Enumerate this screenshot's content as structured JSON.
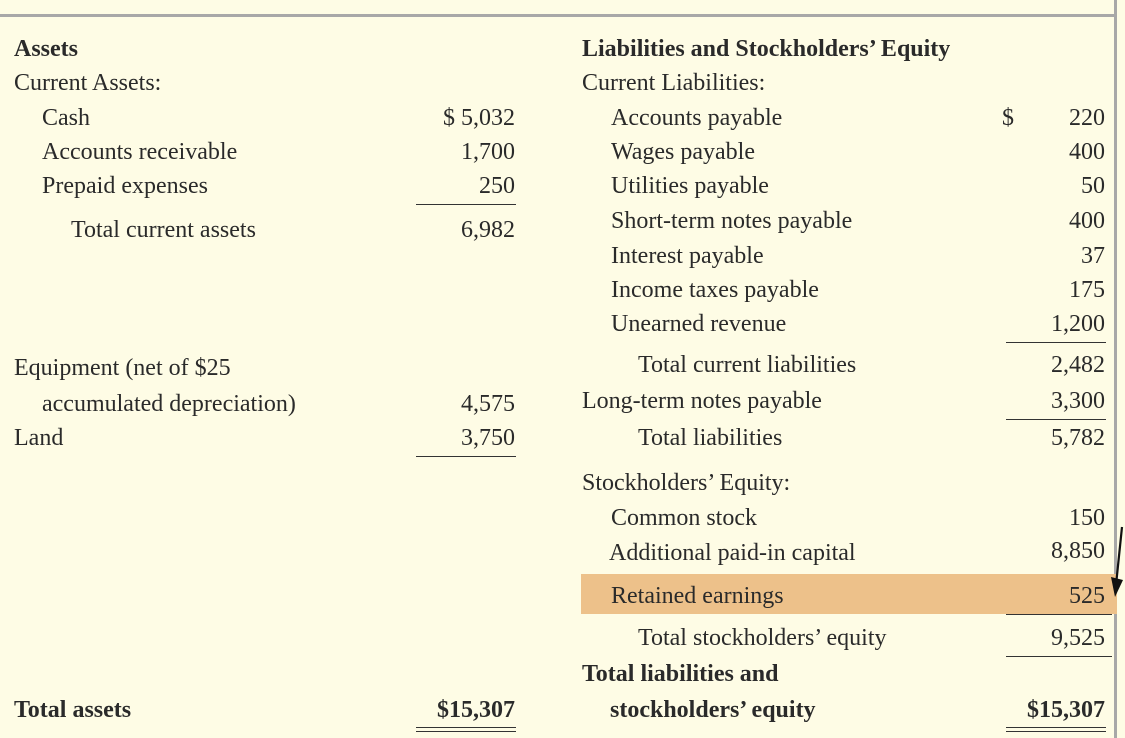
{
  "assets": {
    "heading": "Assets",
    "current_heading": "Current Assets:",
    "cash_label": "Cash",
    "cash_value": "$ 5,032",
    "ar_label": "Accounts receivable",
    "ar_value": "1,700",
    "prepaid_label": "Prepaid expenses",
    "prepaid_value": "250",
    "total_current_label": "Total current assets",
    "total_current_value": "6,982",
    "equipment_label_1": "Equipment (net of $25",
    "equipment_label_2": "accumulated depreciation)",
    "equipment_value": "4,575",
    "land_label": "Land",
    "land_value": "3,750",
    "total_label": "Total assets",
    "total_value": "$15,307"
  },
  "liabilities": {
    "heading": "Liabilities and Stockholders’ Equity",
    "current_heading": "Current Liabilities:",
    "dollar_sign": "$",
    "items": [
      {
        "label": "Accounts payable",
        "value": "220"
      },
      {
        "label": "Wages payable",
        "value": "400"
      },
      {
        "label": "Utilities payable",
        "value": "50"
      },
      {
        "label": "Short-term notes payable",
        "value": "400"
      },
      {
        "label": "Interest payable",
        "value": "37"
      },
      {
        "label": "Income taxes payable",
        "value": "175"
      },
      {
        "label": "Unearned revenue",
        "value": "1,200"
      }
    ],
    "total_current_label": "Total current liabilities",
    "total_current_value": "2,482",
    "long_term_label": "Long-term notes payable",
    "long_term_value": "3,300",
    "total_label": "Total liabilities",
    "total_value": "5,782"
  },
  "equity": {
    "heading": "Stockholders’ Equity:",
    "common_label": "Common stock",
    "common_value": "150",
    "apic_label": "Additional paid-in capital",
    "apic_value": "8,850",
    "re_label": "Retained earnings",
    "re_value": "525",
    "total_label": "Total stockholders’ equity",
    "total_value": "9,525",
    "grand_total_label_1": "Total liabilities and",
    "grand_total_label_2": "stockholders’ equity",
    "grand_total_value": "$15,307"
  },
  "colors": {
    "background": "#FEFCE5",
    "highlight": "#EDC18A",
    "frame": "#A8A8A8"
  }
}
